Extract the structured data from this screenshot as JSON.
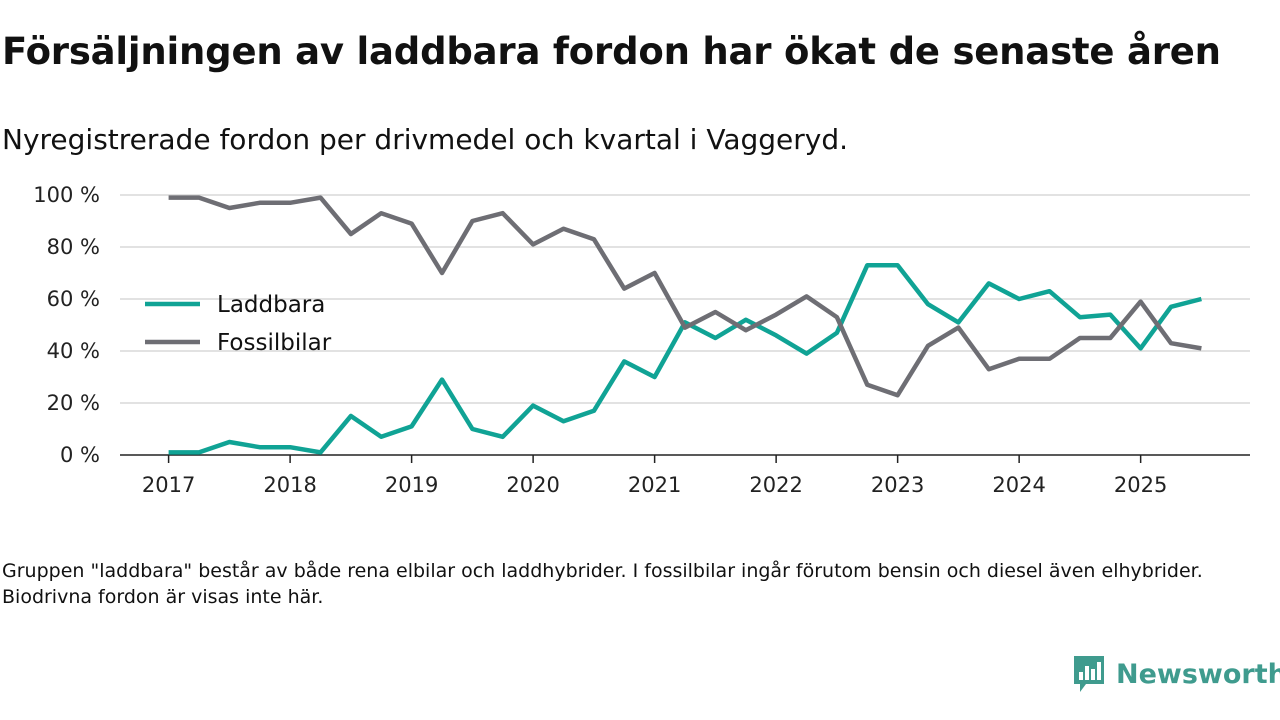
{
  "title": "Försäljningen av laddbara fordon har ökat de senaste åren",
  "subtitle": "Nyregistrerade fordon per drivmedel och kvartal i Vaggeryd.",
  "footnote": "Gruppen \"laddbara\" består av både rena elbilar och laddhybrider. I fossilbilar ingår förutom bensin och diesel även elhybrider. Biodrivna fordon är visas inte här.",
  "brand": {
    "name": "Newsworthy",
    "icon": "newsworthy-logo-icon",
    "color": "#3f9b8e"
  },
  "chart_data": {
    "type": "line",
    "title": "Försäljningen av laddbara fordon har ökat de senaste åren",
    "xlabel": "",
    "ylabel": "",
    "x": [
      2017.0,
      2017.25,
      2017.5,
      2017.75,
      2018.0,
      2018.25,
      2018.5,
      2018.75,
      2019.0,
      2019.25,
      2019.5,
      2019.75,
      2020.0,
      2020.25,
      2020.5,
      2020.75,
      2021.0,
      2021.25,
      2021.5,
      2021.75,
      2022.0,
      2022.25,
      2022.5,
      2022.75,
      2023.0,
      2023.25,
      2023.5,
      2023.75,
      2024.0,
      2024.25,
      2024.5,
      2024.75,
      2025.0,
      2025.25,
      2025.5
    ],
    "xlim": [
      2016.6,
      2025.9
    ],
    "ylim": [
      0,
      100
    ],
    "x_ticks": [
      2017,
      2018,
      2019,
      2020,
      2021,
      2022,
      2023,
      2024,
      2025
    ],
    "x_tick_labels": [
      "2017",
      "2018",
      "2019",
      "2020",
      "2021",
      "2022",
      "2023",
      "2024",
      "2025"
    ],
    "y_ticks": [
      0,
      20,
      40,
      60,
      80,
      100
    ],
    "y_tick_labels": [
      "0 %",
      "20 %",
      "40 %",
      "60 %",
      "80 %",
      "100 %"
    ],
    "grid": true,
    "legend_position": "left-middle",
    "series": [
      {
        "name": "Laddbara",
        "color": "#10a395",
        "values": [
          1,
          1,
          5,
          3,
          3,
          1,
          15,
          7,
          11,
          29,
          10,
          7,
          19,
          13,
          17,
          36,
          30,
          51,
          45,
          52,
          46,
          39,
          47,
          73,
          73,
          58,
          51,
          66,
          60,
          63,
          53,
          54,
          41,
          57,
          60
        ]
      },
      {
        "name": "Fossilbilar",
        "color": "#6e6e74",
        "values": [
          99,
          99,
          95,
          97,
          97,
          99,
          85,
          93,
          89,
          70,
          90,
          93,
          81,
          87,
          83,
          64,
          70,
          49,
          55,
          48,
          54,
          61,
          53,
          27,
          23,
          42,
          49,
          33,
          37,
          37,
          45,
          45,
          59,
          43,
          41
        ]
      }
    ]
  }
}
